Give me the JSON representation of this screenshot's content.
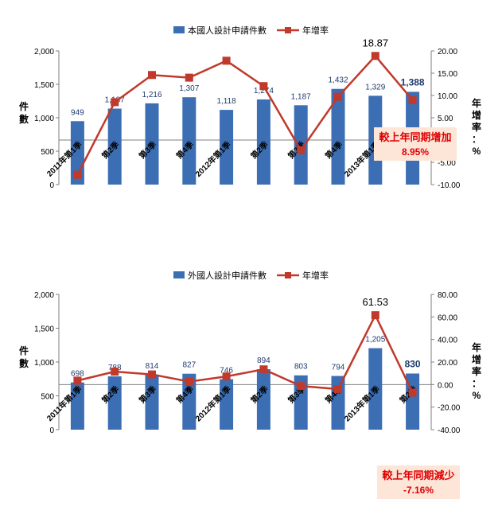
{
  "chart_data": [
    {
      "type": "bar",
      "categories": [
        "2011年第1季",
        "第2季",
        "第3季",
        "第4季",
        "2012年第1季",
        "第2季",
        "第3季",
        "第4季",
        "2013年第1季",
        "第2季"
      ],
      "series": [
        {
          "name": "本國人設計申請件數",
          "type": "bar",
          "axis": "left",
          "values": [
            949,
            1137,
            1216,
            1307,
            1118,
            1274,
            1187,
            1432,
            1329,
            1388
          ],
          "labels": [
            "949",
            "1,137",
            "1,216",
            "1,307",
            "1,118",
            "1,274",
            "1,187",
            "1,432",
            "1,329",
            "1,388"
          ]
        },
        {
          "name": "年增率",
          "type": "line",
          "axis": "right",
          "values": [
            -7.8,
            8.5,
            14.6,
            14.0,
            17.8,
            12.1,
            -2.3,
            9.7,
            18.87,
            8.95
          ]
        }
      ],
      "ylabel": "件數",
      "y2label": "年增率：%",
      "ylim": [
        0,
        2000
      ],
      "yticks": [
        "0",
        "500",
        "1,000",
        "1,500",
        "2,000"
      ],
      "y2lim": [
        -10,
        20
      ],
      "y2ticks": [
        "-10.00",
        "-5.00",
        "0.00",
        "5.00",
        "10.00",
        "15.00",
        "20.00"
      ],
      "annotations": {
        "peak_label": "18.87",
        "callout_line1": "較上年同期增加",
        "callout_line2": "8.95%"
      },
      "legend": "top-center",
      "colors": {
        "bar": "#3c6eb4",
        "line": "#c0392b",
        "callout_bg": "#fde5d8"
      }
    },
    {
      "type": "bar",
      "categories": [
        "2011年第1季",
        "第2季",
        "第3季",
        "第4季",
        "2012年第1季",
        "第2季",
        "第3季",
        "第4季",
        "2013年第1季",
        "第2季"
      ],
      "series": [
        {
          "name": "外國人設計申請件數",
          "type": "bar",
          "axis": "left",
          "values": [
            698,
            788,
            814,
            827,
            746,
            894,
            803,
            794,
            1205,
            830
          ],
          "labels": [
            "698",
            "788",
            "814",
            "827",
            "746",
            "894",
            "803",
            "794",
            "1,205",
            "830"
          ]
        },
        {
          "name": "年增率",
          "type": "line",
          "axis": "right",
          "values": [
            3.5,
            11.5,
            9.0,
            2.6,
            7.2,
            13.5,
            -1.3,
            -4.0,
            61.53,
            -7.16
          ]
        }
      ],
      "ylabel": "件數",
      "y2label": "年增率：%",
      "ylim": [
        0,
        2000
      ],
      "yticks": [
        "0",
        "500",
        "1,000",
        "1,500",
        "2,000"
      ],
      "y2lim": [
        -40,
        80
      ],
      "y2ticks": [
        "-40.00",
        "-20.00",
        "0.00",
        "20.00",
        "40.00",
        "60.00",
        "80.00"
      ],
      "annotations": {
        "peak_label": "61.53",
        "callout_line1": "較上年同期減少",
        "callout_line2": "-7.16%"
      },
      "legend": "top-center",
      "colors": {
        "bar": "#3c6eb4",
        "line": "#c0392b",
        "callout_bg": "#fde5d8"
      }
    }
  ]
}
